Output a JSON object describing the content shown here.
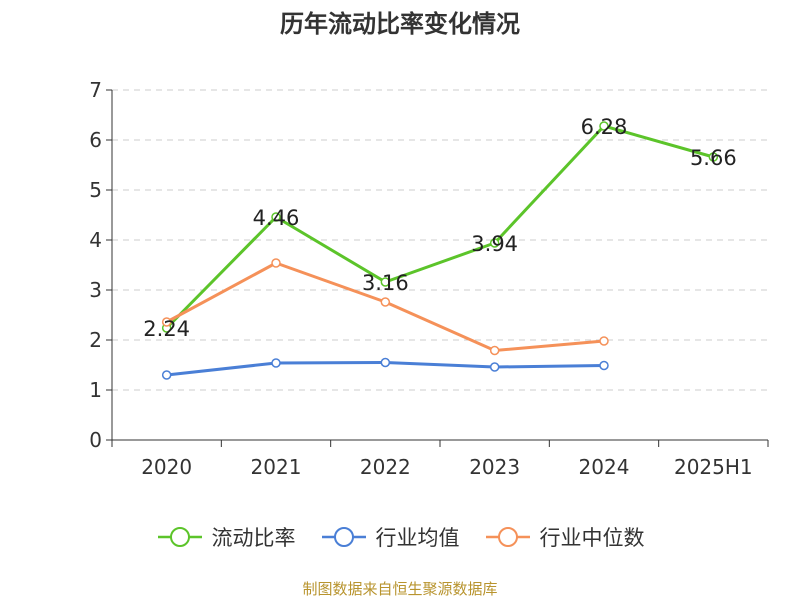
{
  "chart_data": {
    "type": "line",
    "title": "历年流动比率变化情况",
    "categories": [
      "2020",
      "2021",
      "2022",
      "2023",
      "2024",
      "2025H1"
    ],
    "ylim": [
      0,
      7
    ],
    "yticks": [
      "0",
      "1",
      "2",
      "3",
      "4",
      "5",
      "6",
      "7"
    ],
    "grid": true,
    "legend_position": "bottom",
    "series": [
      {
        "name": "流动比率",
        "color": "#5cc42a",
        "values": [
          2.24,
          4.46,
          3.16,
          3.94,
          6.28,
          5.66
        ],
        "labels": [
          "2.24",
          "4.46",
          "3.16",
          "3.94",
          "6.28",
          "5.66"
        ]
      },
      {
        "name": "行业均值",
        "color": "#4a7fd6",
        "values": [
          1.3,
          1.54,
          1.55,
          1.46,
          1.49,
          null
        ]
      },
      {
        "name": "行业中位数",
        "color": "#f59159",
        "values": [
          2.36,
          3.54,
          2.76,
          1.79,
          1.98,
          null
        ]
      }
    ]
  },
  "source_note": "制图数据来自恒生聚源数据库"
}
